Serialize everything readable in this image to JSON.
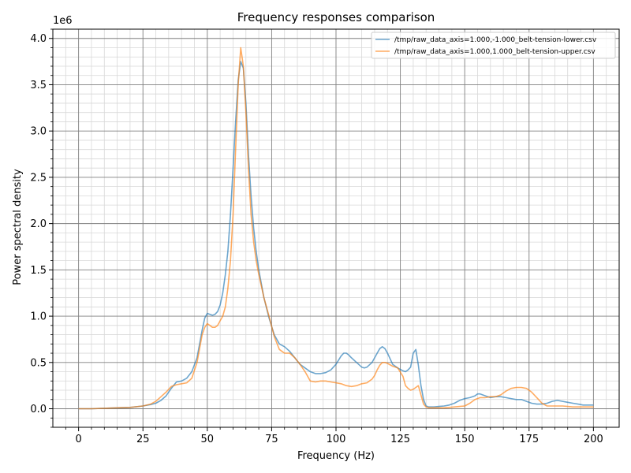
{
  "chart_data": {
    "type": "line",
    "title": "Frequency responses comparison",
    "xlabel": "Frequency (Hz)",
    "ylabel": "Power spectral density",
    "y_offset_label": "1e6",
    "xlim": [
      -10,
      210
    ],
    "ylim": [
      -0.2,
      4.1
    ],
    "x_ticks": [
      0,
      25,
      50,
      75,
      100,
      125,
      150,
      175,
      200
    ],
    "y_ticks": [
      0.0,
      0.5,
      1.0,
      1.5,
      2.0,
      2.5,
      3.0,
      3.5,
      4.0
    ],
    "x_tick_labels": [
      "0",
      "25",
      "50",
      "75",
      "100",
      "125",
      "150",
      "175",
      "200"
    ],
    "y_tick_labels": [
      "0.0",
      "0.5",
      "1.0",
      "1.5",
      "2.0",
      "2.5",
      "3.0",
      "3.5",
      "4.0"
    ],
    "grid": true,
    "legend_position": "top-right",
    "series": [
      {
        "name": "/tmp/raw_data_axis=1.000,-1.000_belt-tension-lower.csv",
        "color": "#1f77b4",
        "x": [
          0,
          5,
          10,
          15,
          20,
          25,
          28,
          30,
          32,
          34,
          36,
          38,
          40,
          42,
          44,
          46,
          48,
          49,
          50,
          51,
          52,
          53,
          54,
          55,
          56,
          57,
          58,
          59,
          60,
          61,
          62,
          63,
          64,
          65,
          66,
          67,
          68,
          69,
          70,
          72,
          74,
          76,
          78,
          80,
          82,
          84,
          86,
          88,
          90,
          92,
          94,
          96,
          98,
          100,
          102,
          103,
          104,
          105,
          106,
          108,
          110,
          111,
          112,
          114,
          116,
          117,
          118,
          119,
          120,
          122,
          124,
          126,
          127,
          128,
          129,
          130,
          131,
          132,
          133,
          134,
          135,
          136,
          138,
          140,
          142,
          144,
          146,
          148,
          150,
          152,
          154,
          155,
          156,
          158,
          160,
          162,
          164,
          166,
          168,
          170,
          172,
          174,
          176,
          178,
          180,
          182,
          184,
          186,
          188,
          190,
          192,
          194,
          196,
          198,
          200
        ],
        "y": [
          0.0,
          0.0,
          0.005,
          0.01,
          0.015,
          0.03,
          0.045,
          0.06,
          0.09,
          0.14,
          0.22,
          0.29,
          0.3,
          0.33,
          0.4,
          0.55,
          0.85,
          0.98,
          1.03,
          1.02,
          1.01,
          1.02,
          1.05,
          1.12,
          1.25,
          1.45,
          1.7,
          2.1,
          2.6,
          3.1,
          3.55,
          3.75,
          3.68,
          3.3,
          2.75,
          2.3,
          1.95,
          1.7,
          1.5,
          1.2,
          0.98,
          0.8,
          0.7,
          0.67,
          0.62,
          0.55,
          0.48,
          0.44,
          0.4,
          0.38,
          0.38,
          0.39,
          0.42,
          0.48,
          0.57,
          0.6,
          0.6,
          0.58,
          0.55,
          0.5,
          0.45,
          0.44,
          0.45,
          0.5,
          0.6,
          0.65,
          0.67,
          0.65,
          0.6,
          0.48,
          0.44,
          0.41,
          0.4,
          0.42,
          0.45,
          0.6,
          0.64,
          0.47,
          0.25,
          0.1,
          0.03,
          0.02,
          0.02,
          0.025,
          0.03,
          0.04,
          0.06,
          0.09,
          0.11,
          0.12,
          0.14,
          0.16,
          0.16,
          0.14,
          0.12,
          0.13,
          0.13,
          0.12,
          0.11,
          0.1,
          0.1,
          0.08,
          0.06,
          0.05,
          0.05,
          0.06,
          0.08,
          0.09,
          0.08,
          0.07,
          0.06,
          0.05,
          0.04,
          0.04,
          0.04
        ]
      },
      {
        "name": "/tmp/raw_data_axis=1.000,1.000_belt-tension-upper.csv",
        "color": "#ff7f0e",
        "x": [
          0,
          5,
          10,
          15,
          20,
          25,
          28,
          30,
          32,
          34,
          36,
          38,
          40,
          42,
          44,
          46,
          48,
          49,
          50,
          51,
          52,
          53,
          54,
          55,
          56,
          57,
          58,
          59,
          60,
          61,
          62,
          63,
          64,
          65,
          66,
          67,
          68,
          69,
          70,
          72,
          74,
          76,
          78,
          80,
          82,
          84,
          86,
          88,
          90,
          92,
          94,
          96,
          98,
          100,
          102,
          104,
          106,
          108,
          110,
          112,
          114,
          115,
          116,
          117,
          118,
          119,
          120,
          122,
          124,
          126,
          127,
          128,
          129,
          130,
          131,
          132,
          133,
          134,
          135,
          136,
          138,
          140,
          142,
          144,
          146,
          148,
          150,
          152,
          154,
          156,
          158,
          160,
          162,
          164,
          166,
          168,
          170,
          172,
          174,
          176,
          178,
          180,
          182,
          184,
          186,
          188,
          190,
          192,
          194,
          196,
          198,
          200
        ],
        "y": [
          0.0,
          0.0,
          0.005,
          0.01,
          0.015,
          0.03,
          0.05,
          0.08,
          0.13,
          0.18,
          0.24,
          0.26,
          0.27,
          0.28,
          0.33,
          0.5,
          0.8,
          0.88,
          0.92,
          0.9,
          0.88,
          0.88,
          0.9,
          0.95,
          1.0,
          1.1,
          1.3,
          1.6,
          2.1,
          2.8,
          3.5,
          3.9,
          3.7,
          3.2,
          2.6,
          2.1,
          1.8,
          1.6,
          1.45,
          1.2,
          1.0,
          0.78,
          0.64,
          0.6,
          0.6,
          0.55,
          0.48,
          0.4,
          0.3,
          0.29,
          0.3,
          0.3,
          0.29,
          0.28,
          0.27,
          0.25,
          0.24,
          0.25,
          0.27,
          0.28,
          0.32,
          0.36,
          0.42,
          0.47,
          0.5,
          0.5,
          0.49,
          0.46,
          0.44,
          0.35,
          0.25,
          0.22,
          0.2,
          0.21,
          0.23,
          0.25,
          0.15,
          0.05,
          0.02,
          0.01,
          0.01,
          0.01,
          0.01,
          0.015,
          0.02,
          0.025,
          0.03,
          0.06,
          0.1,
          0.12,
          0.12,
          0.13,
          0.13,
          0.15,
          0.19,
          0.22,
          0.23,
          0.23,
          0.22,
          0.18,
          0.12,
          0.06,
          0.03,
          0.03,
          0.03,
          0.03,
          0.025,
          0.02,
          0.02,
          0.02,
          0.02,
          0.02
        ]
      }
    ]
  }
}
